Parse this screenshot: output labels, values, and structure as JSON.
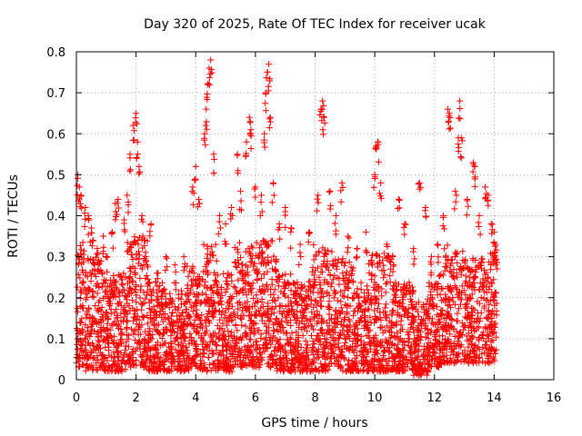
{
  "chart_data": {
    "type": "scatter",
    "title": "Day 320 of 2025, Rate Of TEC Index for receiver ucak",
    "xlabel": "GPS time / hours",
    "ylabel": "ROTI / TECUs",
    "xlim": [
      0,
      16
    ],
    "ylim": [
      0,
      0.8
    ],
    "xticks": [
      "0",
      "2",
      "4",
      "6",
      "8",
      "10",
      "12",
      "14",
      "16"
    ],
    "yticks": [
      "0",
      "0.1",
      "0.2",
      "0.3",
      "0.4",
      "0.5",
      "0.6",
      "0.7",
      "0.8"
    ],
    "grid": true,
    "marker": "+",
    "color": "#ff0000",
    "x_range_of_data": [
      0,
      14.1
    ],
    "series": [
      {
        "points": [
          [
            0.05,
            0.5
          ],
          [
            0.1,
            0.47
          ],
          [
            0.15,
            0.45
          ],
          [
            0.3,
            0.42
          ],
          [
            0.4,
            0.4
          ],
          [
            0.5,
            0.37
          ],
          [
            0.55,
            0.34
          ],
          [
            0.7,
            0.32
          ],
          [
            0.9,
            0.35
          ],
          [
            1.0,
            0.3
          ],
          [
            1.2,
            0.36
          ],
          [
            1.3,
            0.43
          ],
          [
            1.4,
            0.44
          ],
          [
            1.6,
            0.39
          ],
          [
            1.7,
            0.45
          ],
          [
            1.8,
            0.55
          ],
          [
            1.9,
            0.62
          ],
          [
            2.0,
            0.65
          ],
          [
            2.05,
            0.58
          ],
          [
            2.1,
            0.52
          ],
          [
            2.2,
            0.4
          ],
          [
            2.3,
            0.34
          ],
          [
            2.5,
            0.38
          ],
          [
            2.7,
            0.26
          ],
          [
            3.0,
            0.3
          ],
          [
            3.3,
            0.28
          ],
          [
            3.6,
            0.3
          ],
          [
            3.9,
            0.47
          ],
          [
            4.0,
            0.52
          ],
          [
            4.1,
            0.44
          ],
          [
            4.3,
            0.6
          ],
          [
            4.35,
            0.66
          ],
          [
            4.4,
            0.72
          ],
          [
            4.45,
            0.76
          ],
          [
            4.5,
            0.78
          ],
          [
            4.6,
            0.55
          ],
          [
            4.8,
            0.4
          ],
          [
            5.0,
            0.38
          ],
          [
            5.2,
            0.42
          ],
          [
            5.4,
            0.55
          ],
          [
            5.5,
            0.46
          ],
          [
            5.7,
            0.58
          ],
          [
            5.8,
            0.64
          ],
          [
            5.85,
            0.61
          ],
          [
            6.0,
            0.47
          ],
          [
            6.2,
            0.45
          ],
          [
            6.3,
            0.6
          ],
          [
            6.35,
            0.7
          ],
          [
            6.4,
            0.75
          ],
          [
            6.45,
            0.77
          ],
          [
            6.5,
            0.64
          ],
          [
            6.6,
            0.48
          ],
          [
            6.8,
            0.38
          ],
          [
            7.0,
            0.42
          ],
          [
            7.2,
            0.37
          ],
          [
            7.5,
            0.33
          ],
          [
            7.8,
            0.36
          ],
          [
            8.1,
            0.45
          ],
          [
            8.2,
            0.66
          ],
          [
            8.25,
            0.68
          ],
          [
            8.3,
            0.64
          ],
          [
            8.5,
            0.46
          ],
          [
            8.7,
            0.4
          ],
          [
            8.9,
            0.48
          ],
          [
            9.1,
            0.35
          ],
          [
            9.4,
            0.32
          ],
          [
            9.7,
            0.36
          ],
          [
            10.0,
            0.5
          ],
          [
            10.05,
            0.57
          ],
          [
            10.1,
            0.58
          ],
          [
            10.2,
            0.48
          ],
          [
            10.4,
            0.33
          ],
          [
            10.6,
            0.3
          ],
          [
            10.8,
            0.44
          ],
          [
            11.0,
            0.38
          ],
          [
            11.3,
            0.32
          ],
          [
            11.5,
            0.48
          ],
          [
            11.7,
            0.42
          ],
          [
            11.9,
            0.3
          ],
          [
            12.1,
            0.33
          ],
          [
            12.3,
            0.4
          ],
          [
            12.45,
            0.66
          ],
          [
            12.5,
            0.65
          ],
          [
            12.7,
            0.46
          ],
          [
            12.8,
            0.59
          ],
          [
            12.85,
            0.68
          ],
          [
            12.9,
            0.59
          ],
          [
            13.1,
            0.44
          ],
          [
            13.3,
            0.53
          ],
          [
            13.35,
            0.52
          ],
          [
            13.5,
            0.4
          ],
          [
            13.7,
            0.47
          ],
          [
            13.8,
            0.45
          ],
          [
            13.9,
            0.38
          ],
          [
            14.0,
            0.36
          ],
          [
            14.05,
            0.33
          ]
        ],
        "bands": [
          [
            0.0,
            0.3,
            0.03,
            0.34
          ],
          [
            0.3,
            0.9,
            0.02,
            0.3
          ],
          [
            0.9,
            1.7,
            0.02,
            0.26
          ],
          [
            1.7,
            2.4,
            0.03,
            0.35
          ],
          [
            2.4,
            3.1,
            0.02,
            0.24
          ],
          [
            3.1,
            3.7,
            0.02,
            0.22
          ],
          [
            3.7,
            4.2,
            0.02,
            0.28
          ],
          [
            4.2,
            4.7,
            0.02,
            0.33
          ],
          [
            4.7,
            5.3,
            0.02,
            0.26
          ],
          [
            5.3,
            6.0,
            0.03,
            0.34
          ],
          [
            6.0,
            6.7,
            0.03,
            0.34
          ],
          [
            6.7,
            7.3,
            0.02,
            0.26
          ],
          [
            7.3,
            7.9,
            0.02,
            0.24
          ],
          [
            7.9,
            8.6,
            0.02,
            0.33
          ],
          [
            8.6,
            9.3,
            0.02,
            0.3
          ],
          [
            9.3,
            9.8,
            0.02,
            0.24
          ],
          [
            9.8,
            10.6,
            0.02,
            0.31
          ],
          [
            10.6,
            11.3,
            0.02,
            0.24
          ],
          [
            11.3,
            11.8,
            0.01,
            0.2
          ],
          [
            11.8,
            12.3,
            0.03,
            0.26
          ],
          [
            12.3,
            13.0,
            0.04,
            0.33
          ],
          [
            13.0,
            13.6,
            0.04,
            0.3
          ],
          [
            13.6,
            14.1,
            0.04,
            0.31
          ]
        ]
      }
    ]
  }
}
